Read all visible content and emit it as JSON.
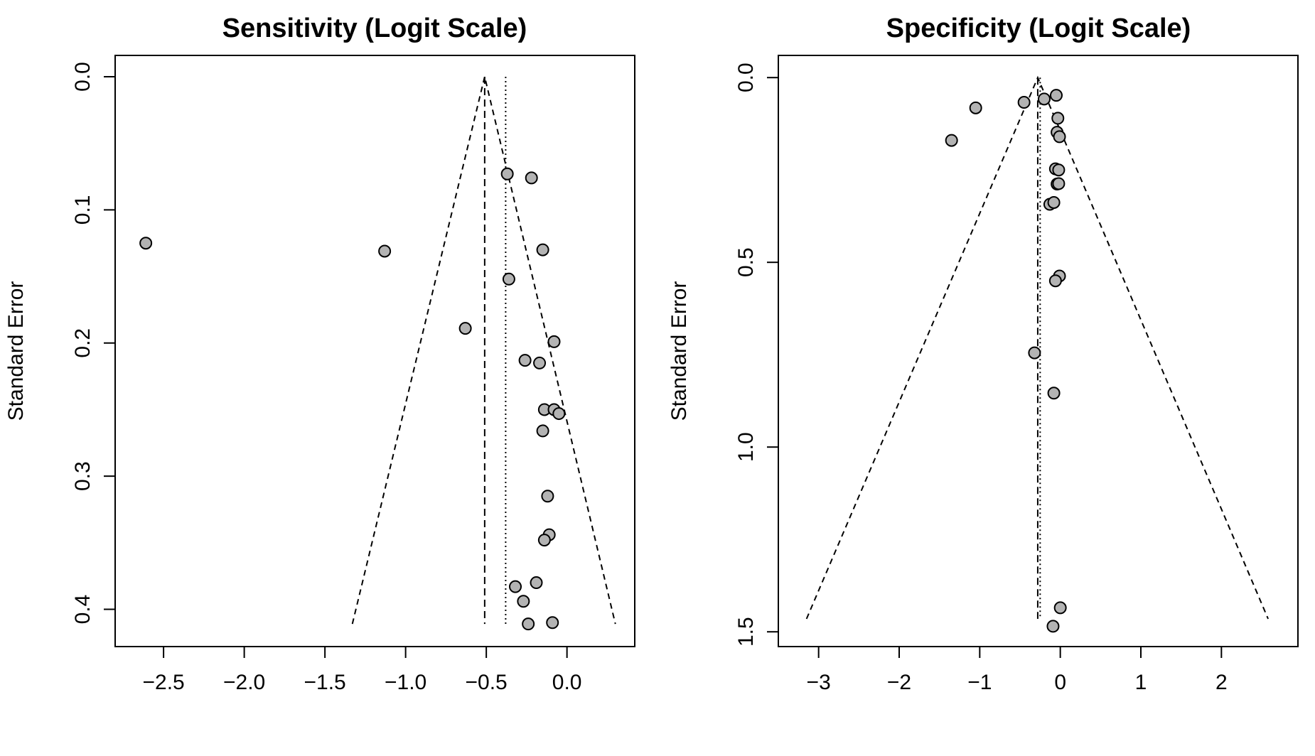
{
  "chart_data": [
    {
      "type": "scatter",
      "title": "Sensitivity (Logit Scale)",
      "ylabel": "Standard Error",
      "xlabel": "",
      "x_ticks": [
        -2.5,
        -2.0,
        -1.5,
        -1.0,
        -0.5,
        0.0
      ],
      "x_tick_labels": [
        "−2.5",
        "−2.0",
        "−1.5",
        "−1.0",
        "−0.5",
        "0.0"
      ],
      "y_ticks": [
        0.0,
        0.1,
        0.2,
        0.3,
        0.4
      ],
      "y_tick_labels": [
        "0.0",
        "0.1",
        "0.2",
        "0.3",
        "0.4"
      ],
      "xlim": [
        -2.8,
        0.42
      ],
      "ylim": [
        0.428,
        -0.016
      ],
      "y_reversed": true,
      "summary_estimate": -0.51,
      "reference_line": -0.38,
      "funnel_se_max": 0.411,
      "funnel_left_x": -1.33,
      "funnel_right_x": 0.3,
      "points": [
        {
          "x": -2.61,
          "se": 0.125
        },
        {
          "x": -1.13,
          "se": 0.131
        },
        {
          "x": -0.37,
          "se": 0.073
        },
        {
          "x": -0.22,
          "se": 0.076
        },
        {
          "x": -0.15,
          "se": 0.13
        },
        {
          "x": -0.36,
          "se": 0.152
        },
        {
          "x": -0.63,
          "se": 0.189
        },
        {
          "x": -0.08,
          "se": 0.199
        },
        {
          "x": -0.26,
          "se": 0.213
        },
        {
          "x": -0.17,
          "se": 0.215
        },
        {
          "x": -0.14,
          "se": 0.25
        },
        {
          "x": -0.08,
          "se": 0.25
        },
        {
          "x": -0.05,
          "se": 0.253
        },
        {
          "x": -0.15,
          "se": 0.266
        },
        {
          "x": -0.12,
          "se": 0.315
        },
        {
          "x": -0.11,
          "se": 0.344
        },
        {
          "x": -0.14,
          "se": 0.348
        },
        {
          "x": -0.19,
          "se": 0.38
        },
        {
          "x": -0.32,
          "se": 0.383
        },
        {
          "x": -0.27,
          "se": 0.394
        },
        {
          "x": -0.24,
          "se": 0.411
        },
        {
          "x": -0.09,
          "se": 0.41
        }
      ]
    },
    {
      "type": "scatter",
      "title": "Specificity (Logit Scale)",
      "ylabel": "Standard Error",
      "xlabel": "",
      "x_ticks": [
        -3,
        -2,
        -1,
        0,
        1,
        2
      ],
      "x_tick_labels": [
        "−3",
        "−2",
        "−1",
        "0",
        "1",
        "2"
      ],
      "y_ticks": [
        0.0,
        0.5,
        1.0,
        1.5
      ],
      "y_tick_labels": [
        "0.0",
        "0.5",
        "1.0",
        "1.5"
      ],
      "xlim": [
        -3.5,
        2.95
      ],
      "ylim": [
        1.54,
        -0.06
      ],
      "y_reversed": true,
      "summary_estimate": -0.28,
      "reference_line": -0.25,
      "funnel_se_max": 1.465,
      "funnel_left_x": -3.15,
      "funnel_right_x": 2.58,
      "points": [
        {
          "x": -0.05,
          "se": 0.048
        },
        {
          "x": -0.2,
          "se": 0.058
        },
        {
          "x": -0.45,
          "se": 0.067
        },
        {
          "x": -1.05,
          "se": 0.082
        },
        {
          "x": -0.03,
          "se": 0.11
        },
        {
          "x": -0.04,
          "se": 0.148
        },
        {
          "x": -0.01,
          "se": 0.16
        },
        {
          "x": -1.35,
          "se": 0.17
        },
        {
          "x": -0.06,
          "se": 0.247
        },
        {
          "x": -0.02,
          "se": 0.25
        },
        {
          "x": -0.04,
          "se": 0.288
        },
        {
          "x": -0.02,
          "se": 0.287
        },
        {
          "x": -0.13,
          "se": 0.343
        },
        {
          "x": -0.08,
          "se": 0.338
        },
        {
          "x": -0.01,
          "se": 0.537
        },
        {
          "x": -0.06,
          "se": 0.55
        },
        {
          "x": -0.32,
          "se": 0.745
        },
        {
          "x": -0.08,
          "se": 0.854
        },
        {
          "x": 0.0,
          "se": 1.435
        },
        {
          "x": -0.09,
          "se": 1.485
        }
      ]
    }
  ]
}
